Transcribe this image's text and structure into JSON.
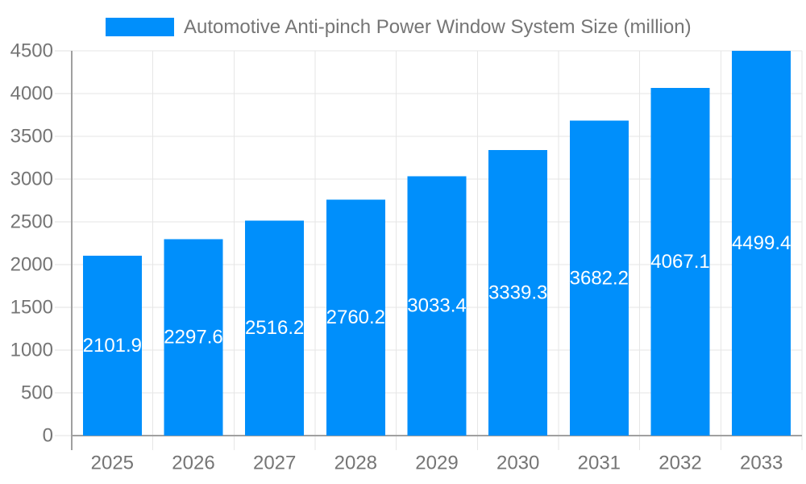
{
  "chart_data": {
    "type": "bar",
    "title": "",
    "legend": {
      "label": "Automotive Anti-pinch Power Window System Size (million)",
      "position": "top-center"
    },
    "categories": [
      "2025",
      "2026",
      "2027",
      "2028",
      "2029",
      "2030",
      "2031",
      "2032",
      "2033"
    ],
    "series": [
      {
        "name": "Automotive Anti-pinch Power Window System Size (million)",
        "values": [
          2101.9,
          2297.6,
          2516.2,
          2760.2,
          3033.4,
          3339.3,
          3682.2,
          4067.1,
          4499.4
        ]
      }
    ],
    "bar_value_labels": [
      "2101.9",
      "2297.6",
      "2516.2",
      "2760.2",
      "3033.4",
      "3339.3",
      "3682.2",
      "4067.1",
      "4499.4"
    ],
    "xlabel": "",
    "ylabel": "",
    "ylim": [
      0,
      4500
    ],
    "ytick_step": 500,
    "ytick_labels": [
      "0",
      "500",
      "1000",
      "1500",
      "2000",
      "2500",
      "3000",
      "3500",
      "4000",
      "4500"
    ],
    "grid": {
      "horizontal": true,
      "vertical": true
    },
    "value_label_position": "inside-center",
    "colors": {
      "bar": "#008ffb",
      "bar_label_text": "#ffffff",
      "axis_text": "#757575",
      "legend_text": "#757575",
      "grid_line": "#e6e6e6",
      "tick_line": "#e0e0e0",
      "axis_line": "#a0a0a0",
      "background": "#ffffff"
    }
  }
}
